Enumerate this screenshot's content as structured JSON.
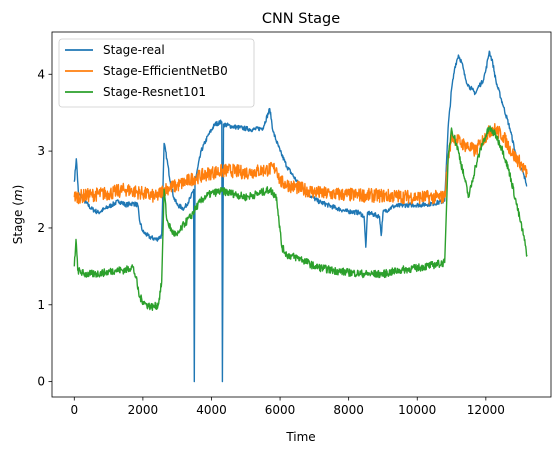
{
  "chart_data": {
    "type": "line",
    "title": "CNN Stage",
    "xlabel": "Time",
    "ylabel": "Stage (m)",
    "ylabel_parts": {
      "prefix": "Stage (",
      "unit": "m",
      "suffix": ")"
    },
    "xlim": [
      -650,
      13900
    ],
    "ylim": [
      -0.2,
      4.55
    ],
    "xticks": [
      0,
      2000,
      4000,
      6000,
      8000,
      10000,
      12000
    ],
    "yticks": [
      0,
      1,
      2,
      3,
      4
    ],
    "grid": false,
    "legend": {
      "placement": "top-left"
    },
    "series": [
      {
        "name": "Stage-real",
        "color": "#1f77b4",
        "noise": 0.03,
        "points": [
          [
            0,
            2.6
          ],
          [
            60,
            2.9
          ],
          [
            120,
            2.45
          ],
          [
            300,
            2.35
          ],
          [
            500,
            2.25
          ],
          [
            700,
            2.2
          ],
          [
            900,
            2.25
          ],
          [
            1100,
            2.3
          ],
          [
            1300,
            2.35
          ],
          [
            1500,
            2.3
          ],
          [
            1700,
            2.32
          ],
          [
            1850,
            2.3
          ],
          [
            1900,
            2.1
          ],
          [
            2000,
            1.95
          ],
          [
            2200,
            1.88
          ],
          [
            2400,
            1.85
          ],
          [
            2550,
            1.9
          ],
          [
            2620,
            3.1
          ],
          [
            2700,
            2.9
          ],
          [
            2800,
            2.6
          ],
          [
            2900,
            2.4
          ],
          [
            3000,
            2.3
          ],
          [
            3200,
            2.25
          ],
          [
            3400,
            2.4
          ],
          [
            3480,
            2.5
          ],
          [
            3500,
            0.0
          ],
          [
            3520,
            2.6
          ],
          [
            3700,
            3.0
          ],
          [
            3900,
            3.2
          ],
          [
            4100,
            3.35
          ],
          [
            4300,
            3.38
          ],
          [
            4320,
            0.0
          ],
          [
            4350,
            3.35
          ],
          [
            4600,
            3.32
          ],
          [
            4900,
            3.3
          ],
          [
            5200,
            3.28
          ],
          [
            5500,
            3.3
          ],
          [
            5700,
            3.55
          ],
          [
            5800,
            3.25
          ],
          [
            6000,
            3.0
          ],
          [
            6200,
            2.8
          ],
          [
            6500,
            2.6
          ],
          [
            6800,
            2.45
          ],
          [
            7100,
            2.35
          ],
          [
            7500,
            2.28
          ],
          [
            7900,
            2.22
          ],
          [
            8300,
            2.2
          ],
          [
            8450,
            2.15
          ],
          [
            8500,
            1.75
          ],
          [
            8550,
            2.2
          ],
          [
            8900,
            2.15
          ],
          [
            8950,
            1.9
          ],
          [
            9000,
            2.2
          ],
          [
            9300,
            2.28
          ],
          [
            9700,
            2.3
          ],
          [
            10100,
            2.3
          ],
          [
            10500,
            2.32
          ],
          [
            10800,
            2.35
          ],
          [
            10900,
            3.3
          ],
          [
            11000,
            3.8
          ],
          [
            11100,
            4.1
          ],
          [
            11200,
            4.25
          ],
          [
            11300,
            4.15
          ],
          [
            11400,
            3.95
          ],
          [
            11500,
            3.85
          ],
          [
            11600,
            3.8
          ],
          [
            11700,
            3.75
          ],
          [
            11800,
            3.85
          ],
          [
            11900,
            3.9
          ],
          [
            12000,
            4.05
          ],
          [
            12100,
            4.3
          ],
          [
            12200,
            4.15
          ],
          [
            12300,
            3.9
          ],
          [
            12500,
            3.6
          ],
          [
            12700,
            3.3
          ],
          [
            12900,
            2.9
          ],
          [
            13100,
            2.7
          ],
          [
            13200,
            2.55
          ]
        ]
      },
      {
        "name": "Stage-EfficientNetB0",
        "color": "#ff7f0e",
        "noise": 0.09,
        "points": [
          [
            0,
            2.4
          ],
          [
            500,
            2.43
          ],
          [
            1000,
            2.45
          ],
          [
            1500,
            2.5
          ],
          [
            2000,
            2.45
          ],
          [
            2400,
            2.4
          ],
          [
            2600,
            2.5
          ],
          [
            3000,
            2.55
          ],
          [
            3500,
            2.65
          ],
          [
            4000,
            2.72
          ],
          [
            4500,
            2.75
          ],
          [
            5000,
            2.72
          ],
          [
            5500,
            2.75
          ],
          [
            5900,
            2.78
          ],
          [
            6000,
            2.6
          ],
          [
            6300,
            2.55
          ],
          [
            6700,
            2.5
          ],
          [
            7200,
            2.45
          ],
          [
            8000,
            2.43
          ],
          [
            9000,
            2.42
          ],
          [
            10000,
            2.4
          ],
          [
            10800,
            2.4
          ],
          [
            10900,
            2.9
          ],
          [
            11000,
            3.2
          ],
          [
            11300,
            3.1
          ],
          [
            11700,
            3.0
          ],
          [
            12000,
            3.2
          ],
          [
            12200,
            3.3
          ],
          [
            12500,
            3.2
          ],
          [
            12800,
            2.95
          ],
          [
            13000,
            2.85
          ],
          [
            13200,
            2.7
          ]
        ]
      },
      {
        "name": "Stage-Resnet101",
        "color": "#2ca02c",
        "noise": 0.05,
        "points": [
          [
            0,
            1.5
          ],
          [
            50,
            1.85
          ],
          [
            100,
            1.45
          ],
          [
            300,
            1.4
          ],
          [
            600,
            1.4
          ],
          [
            900,
            1.42
          ],
          [
            1200,
            1.45
          ],
          [
            1500,
            1.45
          ],
          [
            1700,
            1.5
          ],
          [
            1800,
            1.35
          ],
          [
            1900,
            1.1
          ],
          [
            2100,
            1.0
          ],
          [
            2300,
            0.97
          ],
          [
            2450,
            1.0
          ],
          [
            2550,
            1.3
          ],
          [
            2620,
            2.5
          ],
          [
            2700,
            2.1
          ],
          [
            2850,
            1.95
          ],
          [
            3000,
            1.9
          ],
          [
            3200,
            2.05
          ],
          [
            3400,
            2.15
          ],
          [
            3600,
            2.3
          ],
          [
            3800,
            2.4
          ],
          [
            4000,
            2.45
          ],
          [
            4300,
            2.48
          ],
          [
            4600,
            2.45
          ],
          [
            5000,
            2.4
          ],
          [
            5400,
            2.45
          ],
          [
            5700,
            2.5
          ],
          [
            5900,
            2.4
          ],
          [
            6050,
            1.75
          ],
          [
            6200,
            1.65
          ],
          [
            6600,
            1.6
          ],
          [
            7000,
            1.5
          ],
          [
            7500,
            1.45
          ],
          [
            8000,
            1.42
          ],
          [
            8500,
            1.4
          ],
          [
            9000,
            1.4
          ],
          [
            9500,
            1.45
          ],
          [
            10000,
            1.48
          ],
          [
            10500,
            1.52
          ],
          [
            10800,
            1.55
          ],
          [
            10900,
            2.9
          ],
          [
            11000,
            3.3
          ],
          [
            11200,
            3.0
          ],
          [
            11400,
            2.6
          ],
          [
            11500,
            2.4
          ],
          [
            11700,
            2.8
          ],
          [
            11900,
            3.1
          ],
          [
            12100,
            3.3
          ],
          [
            12300,
            3.2
          ],
          [
            12500,
            3.0
          ],
          [
            12700,
            2.7
          ],
          [
            12900,
            2.3
          ],
          [
            13100,
            1.9
          ],
          [
            13200,
            1.65
          ]
        ]
      }
    ]
  }
}
